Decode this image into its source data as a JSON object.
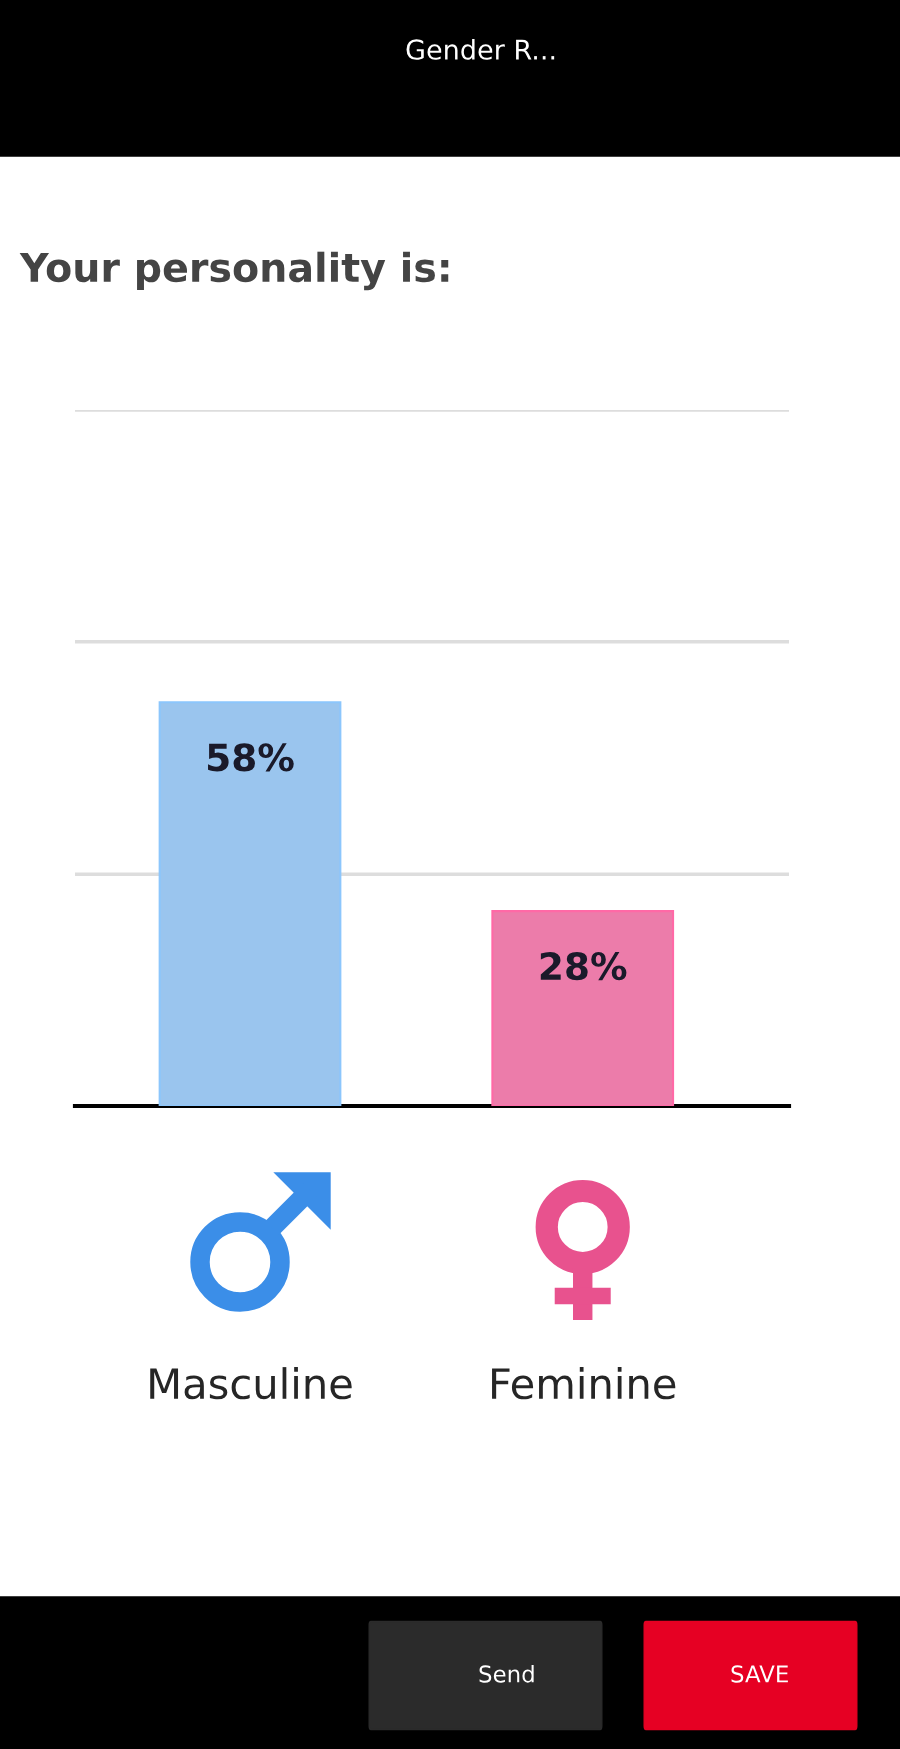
{
  "chart_data": {
    "type": "bar",
    "title": "Your personality is:",
    "categories": [
      "Masculine",
      "Feminine"
    ],
    "values": [
      58,
      28
    ],
    "colors": [
      "#8cc6fc",
      "#ff69a6"
    ],
    "value_labels": [
      "58%",
      "28%"
    ],
    "ylim": [
      0,
      100
    ],
    "yticks": [
      {
        "value": 0,
        "label": null
      },
      {
        "value": 33.3,
        "label": null
      },
      {
        "value": 66.7,
        "label": null
      },
      {
        "value": 100,
        "label": null
      }
    ],
    "grid": "y",
    "tick_labels": "x",
    "annotations": [
      "Gender R...",
      "Send",
      "SAVE"
    ]
  }
}
